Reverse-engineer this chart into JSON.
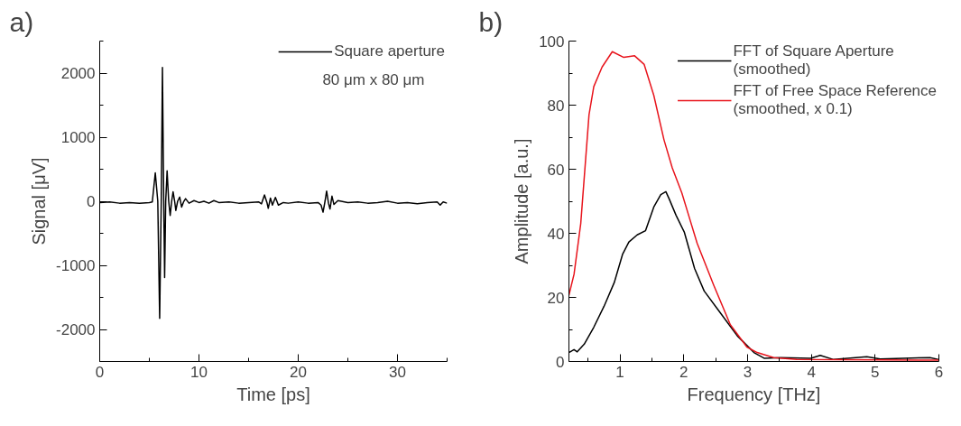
{
  "chart_data": [
    {
      "type": "line",
      "title": "a)",
      "xlabel": "Time [ps]",
      "ylabel": "Signal [μV]",
      "xlim": [
        0,
        35
      ],
      "ylim": [
        -2500,
        2500
      ],
      "xticks": [
        0,
        {
          "value": 5,
          "label": null
        },
        10,
        {
          "value": 15,
          "label": null
        },
        20,
        {
          "value": 25,
          "label": null
        },
        30,
        {
          "value": 35,
          "label": null
        }
      ],
      "yticks": [
        {
          "value": -2500,
          "label": null
        },
        -2000,
        {
          "value": -1500,
          "label": null
        },
        -1000,
        {
          "value": -500,
          "label": null
        },
        0,
        {
          "value": 500,
          "label": null
        },
        1000,
        {
          "value": 1500,
          "label": null
        },
        2000,
        {
          "value": 2500,
          "label": null
        }
      ],
      "grid": false,
      "legend": "top right",
      "line_style": "solid",
      "annotations": [
        "80 μm x 80 μm"
      ],
      "series": [
        {
          "name": "Square aperture",
          "color": "#000000",
          "x": [
            0,
            1,
            2,
            3,
            4,
            5,
            5.3,
            5.6,
            5.85,
            6.04,
            6.2,
            6.32,
            6.45,
            6.54,
            6.65,
            6.79,
            6.95,
            7.1,
            7.25,
            7.39,
            7.55,
            7.67,
            7.85,
            8.06,
            8.25,
            8.45,
            8.65,
            9,
            9.5,
            10,
            10.5,
            11,
            11.5,
            12,
            13,
            14,
            15,
            16,
            16.3,
            16.6,
            16.85,
            16.98,
            17.2,
            17.4,
            17.7,
            18,
            18.5,
            19,
            20,
            21,
            22,
            22.3,
            22.5,
            22.7,
            22.86,
            23.05,
            23.2,
            23.4,
            23.6,
            24,
            25,
            26,
            27,
            28,
            29,
            30,
            31,
            32,
            33,
            34,
            34.3,
            34.6,
            35
          ],
          "values": [
            -20,
            -10,
            -30,
            -20,
            -30,
            -20,
            -10,
            444,
            0,
            -1826,
            0,
            2088,
            0,
            -1190,
            0,
            475,
            0,
            -222,
            0,
            148,
            0,
            -144,
            0,
            65,
            -90,
            -10,
            40,
            -30,
            10,
            -20,
            0,
            -30,
            10,
            -20,
            -10,
            -30,
            -20,
            -10,
            -40,
            100,
            -20,
            -110,
            50,
            -60,
            60,
            -60,
            -20,
            -30,
            -10,
            -30,
            -20,
            -60,
            -170,
            0,
            160,
            -30,
            -120,
            80,
            -50,
            10,
            -20,
            -10,
            -30,
            -20,
            0,
            -30,
            -20,
            -40,
            -20,
            -10,
            -60,
            -10,
            -30
          ]
        }
      ]
    },
    {
      "type": "line",
      "title": "b)",
      "xlabel": "Frequency [THz]",
      "ylabel": "Amplitude [a.u.]",
      "xlim": [
        0.2,
        6
      ],
      "ylim": [
        0,
        100
      ],
      "xticks": [
        {
          "value": 0.5,
          "label": null
        },
        1,
        {
          "value": 1.5,
          "label": null
        },
        2,
        {
          "value": 2.5,
          "label": null
        },
        3,
        {
          "value": 3.5,
          "label": null
        },
        4,
        {
          "value": 4.5,
          "label": null
        },
        5,
        {
          "value": 5.5,
          "label": null
        },
        6
      ],
      "yticks": [
        0,
        {
          "value": 10,
          "label": null
        },
        20,
        {
          "value": 30,
          "label": null
        },
        40,
        {
          "value": 50,
          "label": null
        },
        60,
        {
          "value": 70,
          "label": null
        },
        80,
        {
          "value": 90,
          "label": null
        },
        100
      ],
      "grid": false,
      "legend": "top right",
      "line_style": "solid",
      "series": [
        {
          "name": "FFT of Square Aperture (smoothed)",
          "color": "#000000",
          "x": [
            0.2,
            0.28,
            0.33,
            0.44,
            0.59,
            0.75,
            0.91,
            1.04,
            1.14,
            1.27,
            1.4,
            1.53,
            1.64,
            1.72,
            1.77,
            1.88,
            2.01,
            2.17,
            2.32,
            2.58,
            2.84,
            3.1,
            3.26,
            3.52,
            3.99,
            4.14,
            4.35,
            4.87,
            5.08,
            5.86,
            6
          ],
          "values": [
            2.8,
            3.7,
            3.0,
            5.4,
            10.7,
            17.2,
            24.6,
            33.4,
            37.3,
            39.5,
            40.8,
            48.2,
            52.1,
            53.0,
            50.8,
            45.6,
            40.3,
            29,
            22,
            15,
            8,
            2.8,
            1,
            1.2,
            1,
            1.9,
            0.6,
            1.5,
            0.8,
            1.2,
            0.6
          ]
        },
        {
          "name": "FFT of Free Space Reference (smoothed, x 0.1)",
          "color": "#e8141c",
          "x": [
            0.2,
            0.28,
            0.385,
            0.515,
            0.59,
            0.72,
            0.88,
            1.06,
            1.23,
            1.38,
            1.53,
            1.69,
            1.82,
            1.97,
            2.21,
            2.47,
            2.73,
            2.99,
            3.15,
            3.41,
            3.77,
            6
          ],
          "values": [
            20.7,
            27.2,
            43,
            77,
            85.8,
            91.9,
            96.7,
            94.9,
            95.4,
            92.7,
            83.1,
            69.2,
            60.4,
            52.6,
            36.9,
            23.8,
            11.5,
            4.5,
            2.8,
            1.2,
            0.6,
            0.4
          ]
        }
      ]
    }
  ]
}
